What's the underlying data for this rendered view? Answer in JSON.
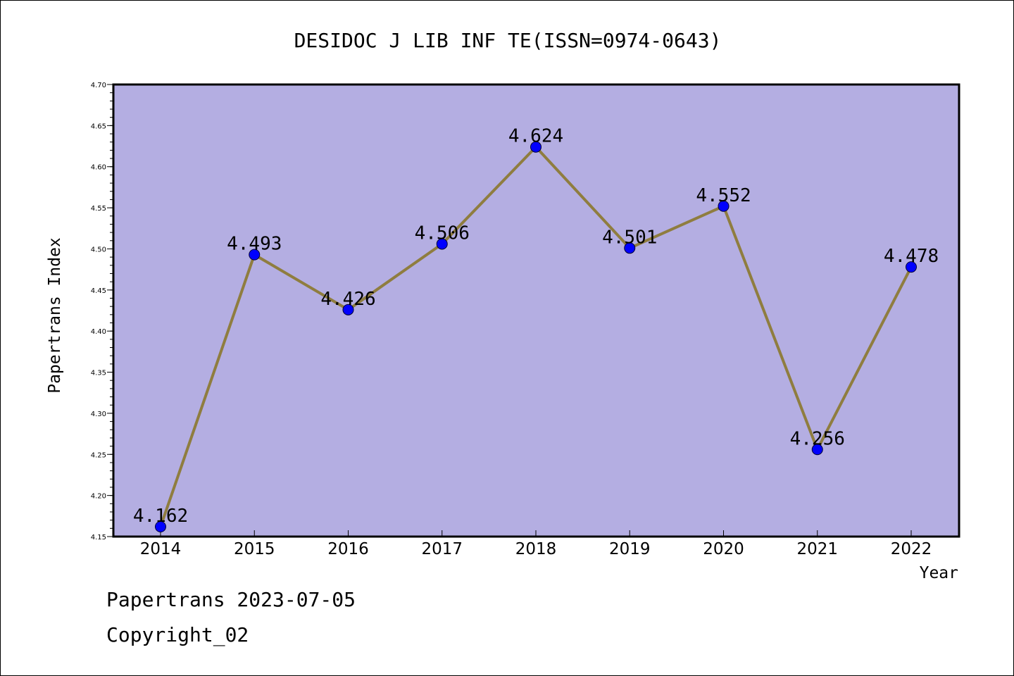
{
  "chart_data": {
    "type": "line",
    "title": "DESIDOC J LIB INF TE(ISSN=0974-0643)",
    "xlabel": "Year",
    "ylabel": "Papertrans Index",
    "categories": [
      "2014",
      "2015",
      "2016",
      "2017",
      "2018",
      "2019",
      "2020",
      "2021",
      "2022"
    ],
    "values": [
      4.162,
      4.493,
      4.426,
      4.506,
      4.624,
      4.501,
      4.552,
      4.256,
      4.478
    ],
    "data_labels": [
      "4.162",
      "4.493",
      "4.426",
      "4.506",
      "4.624",
      "4.501",
      "4.552",
      "4.256",
      "4.478"
    ],
    "ylim": [
      4.15,
      4.7
    ],
    "y_ticks": [
      "4.15",
      "4.20",
      "4.25",
      "4.30",
      "4.35",
      "4.40",
      "4.45",
      "4.50",
      "4.55",
      "4.60",
      "4.65",
      "4.70"
    ],
    "grid": false,
    "legend": "none"
  },
  "colors": {
    "plot_background": "#b4aee2",
    "line": "#8f7d3f",
    "marker": "#0000ff",
    "axis": "#000000"
  },
  "footer": {
    "line1": "Papertrans 2023-07-05",
    "line2": "Copyright_02"
  }
}
